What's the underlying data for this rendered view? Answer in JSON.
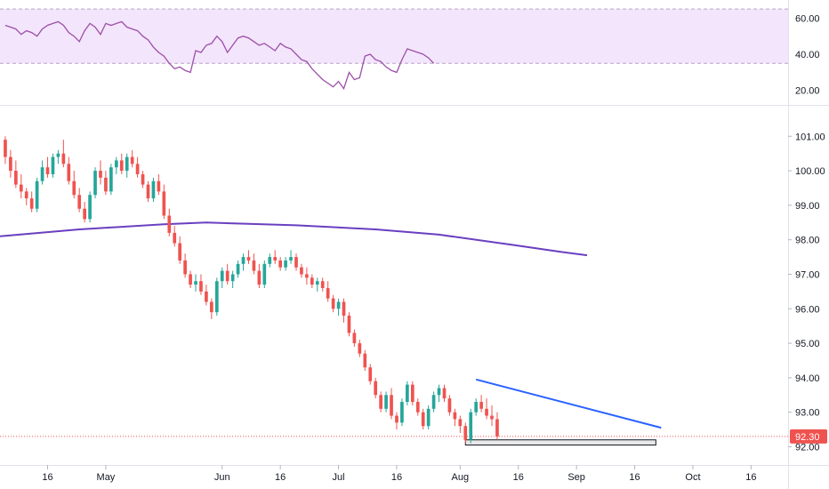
{
  "chart_data": [
    {
      "type": "line",
      "panel": "oscillator",
      "ylim": [
        12,
        70
      ],
      "y_ticks": [
        "60.00",
        "40.00",
        "20.00"
      ],
      "band": {
        "upper": 65,
        "lower": 35,
        "fill": "#f3e5fb",
        "line": "#b8a3c8"
      },
      "color": "#9c4fa8",
      "x_index_start": 0,
      "values": [
        56,
        55,
        54,
        51,
        53,
        52,
        50,
        54,
        56,
        57,
        58,
        56,
        52,
        50,
        47,
        53,
        57,
        55,
        51,
        57,
        56,
        57,
        58,
        55,
        54,
        53,
        50,
        48,
        44,
        41,
        39,
        35,
        32,
        33,
        31,
        30,
        42,
        41,
        45,
        46,
        50,
        47,
        41,
        45,
        49,
        50,
        49,
        47,
        45,
        46,
        44,
        42,
        46,
        44,
        43,
        40,
        37,
        36,
        32,
        29,
        26,
        24,
        22,
        25,
        21,
        30,
        26,
        27,
        39,
        40,
        37,
        36,
        33,
        31,
        30,
        37,
        43,
        42,
        41,
        40,
        38,
        35
      ]
    },
    {
      "type": "candlestick",
      "panel": "price",
      "ylim": [
        91.6,
        101.6
      ],
      "y_ticks": [
        "101.00",
        "100.00",
        "99.00",
        "98.00",
        "97.00",
        "96.00",
        "95.00",
        "94.00",
        "93.00",
        "92.00"
      ],
      "x_tick_labels": [
        {
          "label": "16",
          "i": 8
        },
        {
          "label": "May",
          "i": 19
        },
        {
          "label": "Jun",
          "i": 41
        },
        {
          "label": "16",
          "i": 52
        },
        {
          "label": "Jul",
          "i": 63
        },
        {
          "label": "16",
          "i": 74
        },
        {
          "label": "Aug",
          "i": 86
        },
        {
          "label": "16",
          "i": 97
        },
        {
          "label": "Sep",
          "i": 108
        },
        {
          "label": "16",
          "i": 119
        },
        {
          "label": "Oct",
          "i": 130
        },
        {
          "label": "16",
          "i": 141
        }
      ],
      "x_index_range": [
        -1,
        148
      ],
      "up_color": "#26a69a",
      "down_color": "#ef5350",
      "candles": [
        [
          100.9,
          101.0,
          100.2,
          100.4
        ],
        [
          100.4,
          100.6,
          99.8,
          100.0
        ],
        [
          100.0,
          100.3,
          99.5,
          99.6
        ],
        [
          99.6,
          99.9,
          99.2,
          99.4
        ],
        [
          99.4,
          99.5,
          99.0,
          99.2
        ],
        [
          99.2,
          99.4,
          98.8,
          98.9
        ],
        [
          98.9,
          99.8,
          98.8,
          99.7
        ],
        [
          99.7,
          100.3,
          99.6,
          100.1
        ],
        [
          100.1,
          100.4,
          99.8,
          99.9
        ],
        [
          99.9,
          100.5,
          99.8,
          100.4
        ],
        [
          100.4,
          100.6,
          100.2,
          100.5
        ],
        [
          100.5,
          100.9,
          100.1,
          100.2
        ],
        [
          100.2,
          100.4,
          99.6,
          99.7
        ],
        [
          99.7,
          100.0,
          99.2,
          99.3
        ],
        [
          99.3,
          99.5,
          98.8,
          98.9
        ],
        [
          98.9,
          99.1,
          98.5,
          98.6
        ],
        [
          98.6,
          99.4,
          98.5,
          99.3
        ],
        [
          99.3,
          100.1,
          99.2,
          100.0
        ],
        [
          100.0,
          100.3,
          99.6,
          99.8
        ],
        [
          99.8,
          100.0,
          99.3,
          99.4
        ],
        [
          99.4,
          100.2,
          99.3,
          100.1
        ],
        [
          100.1,
          100.4,
          99.9,
          100.3
        ],
        [
          100.3,
          100.5,
          99.9,
          100.0
        ],
        [
          100.0,
          100.5,
          99.8,
          100.4
        ],
        [
          100.4,
          100.6,
          100.1,
          100.2
        ],
        [
          100.2,
          100.4,
          99.8,
          99.9
        ],
        [
          99.9,
          100.0,
          99.5,
          99.6
        ],
        [
          99.6,
          99.7,
          99.1,
          99.2
        ],
        [
          99.2,
          99.8,
          99.1,
          99.7
        ],
        [
          99.7,
          99.9,
          99.3,
          99.4
        ],
        [
          99.4,
          99.6,
          98.6,
          98.7
        ],
        [
          98.7,
          98.9,
          98.1,
          98.2
        ],
        [
          98.2,
          98.4,
          97.8,
          97.9
        ],
        [
          97.9,
          98.1,
          97.3,
          97.4
        ],
        [
          97.4,
          97.6,
          96.9,
          97.0
        ],
        [
          97.0,
          97.1,
          96.6,
          96.7
        ],
        [
          96.7,
          97.0,
          96.5,
          96.8
        ],
        [
          96.8,
          97.0,
          96.4,
          96.5
        ],
        [
          96.5,
          96.7,
          96.1,
          96.2
        ],
        [
          96.2,
          96.3,
          95.7,
          95.9
        ],
        [
          95.9,
          96.9,
          95.8,
          96.8
        ],
        [
          96.8,
          97.2,
          96.6,
          97.1
        ],
        [
          97.1,
          97.3,
          96.7,
          96.8
        ],
        [
          96.8,
          97.1,
          96.6,
          97.0
        ],
        [
          97.0,
          97.4,
          96.9,
          97.3
        ],
        [
          97.3,
          97.6,
          97.1,
          97.5
        ],
        [
          97.5,
          97.7,
          97.3,
          97.4
        ],
        [
          97.4,
          97.6,
          97.0,
          97.1
        ],
        [
          97.1,
          97.3,
          96.6,
          96.7
        ],
        [
          96.7,
          97.4,
          96.6,
          97.3
        ],
        [
          97.3,
          97.6,
          97.2,
          97.5
        ],
        [
          97.5,
          97.7,
          97.3,
          97.4
        ],
        [
          97.4,
          97.5,
          97.1,
          97.2
        ],
        [
          97.2,
          97.5,
          97.1,
          97.4
        ],
        [
          97.4,
          97.7,
          97.3,
          97.5
        ],
        [
          97.5,
          97.6,
          97.1,
          97.2
        ],
        [
          97.2,
          97.3,
          96.9,
          97.0
        ],
        [
          97.0,
          97.2,
          96.7,
          96.9
        ],
        [
          96.9,
          97.0,
          96.6,
          96.7
        ],
        [
          96.7,
          96.9,
          96.5,
          96.8
        ],
        [
          96.8,
          96.9,
          96.5,
          96.6
        ],
        [
          96.6,
          96.8,
          96.2,
          96.3
        ],
        [
          96.3,
          96.4,
          95.9,
          96.0
        ],
        [
          96.0,
          96.3,
          95.8,
          96.2
        ],
        [
          96.2,
          96.3,
          95.6,
          95.8
        ],
        [
          95.8,
          95.9,
          95.2,
          95.3
        ],
        [
          95.3,
          95.4,
          94.9,
          95.0
        ],
        [
          95.0,
          95.1,
          94.6,
          94.7
        ],
        [
          94.7,
          94.8,
          94.2,
          94.3
        ],
        [
          94.3,
          94.4,
          93.8,
          93.9
        ],
        [
          93.9,
          94.0,
          93.4,
          93.5
        ],
        [
          93.5,
          93.6,
          93.0,
          93.1
        ],
        [
          93.1,
          93.6,
          93.0,
          93.5
        ],
        [
          93.5,
          93.7,
          92.8,
          92.9
        ],
        [
          92.9,
          93.0,
          92.5,
          92.7
        ],
        [
          92.7,
          93.4,
          92.6,
          93.3
        ],
        [
          93.3,
          93.9,
          93.2,
          93.8
        ],
        [
          93.8,
          93.9,
          93.2,
          93.3
        ],
        [
          93.3,
          93.4,
          92.9,
          93.0
        ],
        [
          93.0,
          93.1,
          92.5,
          92.6
        ],
        [
          92.6,
          93.2,
          92.5,
          93.1
        ],
        [
          93.1,
          93.6,
          93.0,
          93.5
        ],
        [
          93.5,
          93.8,
          93.3,
          93.7
        ],
        [
          93.7,
          93.8,
          93.3,
          93.4
        ],
        [
          93.4,
          93.5,
          92.9,
          93.0
        ],
        [
          93.0,
          93.1,
          92.6,
          92.8
        ],
        [
          92.8,
          92.9,
          92.4,
          92.6
        ],
        [
          92.6,
          92.7,
          92.1,
          92.2
        ],
        [
          92.2,
          93.1,
          92.1,
          93.0
        ],
        [
          93.0,
          93.4,
          92.9,
          93.3
        ],
        [
          93.3,
          93.5,
          93.0,
          93.1
        ],
        [
          93.1,
          93.4,
          92.8,
          92.9
        ],
        [
          92.9,
          93.2,
          92.6,
          92.8
        ],
        [
          92.8,
          93.0,
          92.2,
          92.3
        ]
      ],
      "moving_average": {
        "color": "#6a3fc0",
        "points": [
          [
            -1,
            98.1
          ],
          [
            14,
            98.3
          ],
          [
            30,
            98.45
          ],
          [
            38,
            98.5
          ],
          [
            55,
            98.42
          ],
          [
            70,
            98.3
          ],
          [
            82,
            98.15
          ],
          [
            96,
            97.85
          ],
          [
            105,
            97.65
          ],
          [
            110,
            97.55
          ]
        ]
      },
      "trendline": {
        "color": "#2962ff",
        "from": [
          89,
          93.95
        ],
        "to": [
          124,
          92.55
        ]
      },
      "support_zone": {
        "i_from": 87,
        "i_to": 123,
        "y_low": 92.05,
        "y_high": 92.2
      },
      "last_price": {
        "label": "92.30",
        "value": 92.3,
        "color": "#ef5350"
      }
    }
  ]
}
